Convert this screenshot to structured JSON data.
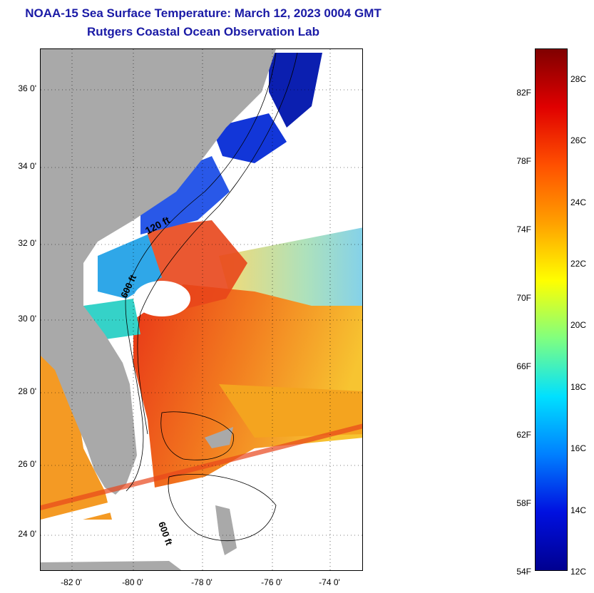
{
  "header": {
    "title_line1": "NOAA-15 Sea Surface Temperature:  March 12, 2023 0004 GMT",
    "title_line2": "Rutgers Coastal Ocean Observation Lab"
  },
  "map": {
    "latitude_labels": [
      "36 0'",
      "34 0'",
      "32 0'",
      "30 0'",
      "28 0'",
      "26 0'",
      "24 0'"
    ],
    "longitude_labels": [
      "-82 0'",
      "-80 0'",
      "-78 0'",
      "-76 0'",
      "-74 0'"
    ],
    "contour_labels": [
      "120 ft",
      "600 ft",
      "600 ft"
    ],
    "colors": {
      "land": "#a9a9a9",
      "cloud": "#ffffff",
      "cold_water": "#0b1fb0",
      "warm_water": "#ee3a18",
      "moderate_water": "#f8b120"
    }
  },
  "colorbar": {
    "fahrenheit_labels": [
      "82F",
      "78F",
      "74F",
      "70F",
      "66F",
      "62F",
      "58F",
      "54F"
    ],
    "celsius_labels": [
      "28C",
      "26C",
      "24C",
      "22C",
      "20C",
      "18C",
      "16C",
      "14C",
      "12C"
    ],
    "gradient": [
      "#800000",
      "#e00000",
      "#ff5000",
      "#ffa000",
      "#ffff00",
      "#80ff80",
      "#00e0ff",
      "#0080ff",
      "#0010e0",
      "#000090"
    ]
  }
}
